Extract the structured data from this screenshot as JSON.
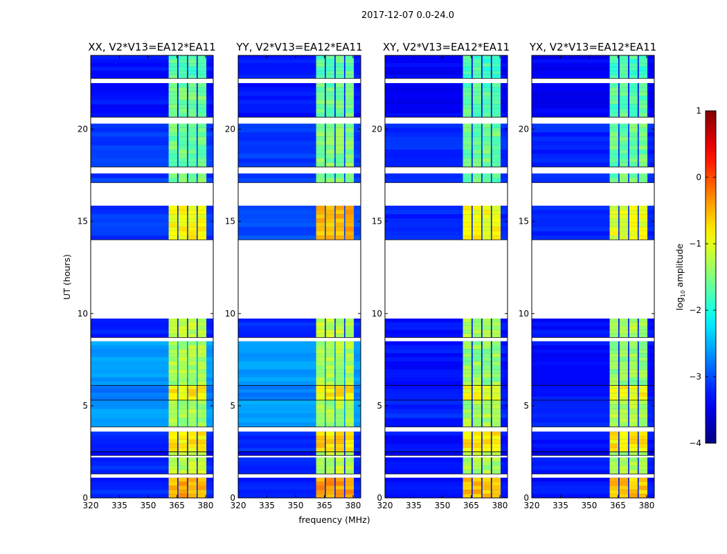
{
  "chart_data": {
    "type": "heatmap",
    "title": "2017-12-07 0.0-24.0",
    "xlabel": "frequency (MHz)",
    "ylabel": "UT (hours)",
    "xlim": [
      320,
      384
    ],
    "ylim": [
      0,
      24
    ],
    "xticks": [
      320,
      335,
      350,
      365,
      380
    ],
    "yticks": [
      0,
      5,
      10,
      15,
      20
    ],
    "panels": [
      {
        "title": "XX, V2*V13=EA12*EA11"
      },
      {
        "title": "YY, V2*V13=EA12*EA11"
      },
      {
        "title": "XY, V2*V13=EA12*EA11"
      },
      {
        "title": "YX, V2*V13=EA12*EA11"
      }
    ],
    "colorbar": {
      "label": "log10 amplitude",
      "label_main": "log",
      "label_sub": "10",
      "label_rest": " amplitude",
      "range": [
        -4,
        1
      ],
      "ticks": [
        1,
        0,
        -1,
        -2,
        -3,
        -4
      ],
      "colormap": "jet"
    },
    "bright_channels_mhz": [
      [
        360.7,
        365.2
      ],
      [
        365.8,
        370.3
      ],
      [
        370.9,
        375.3
      ],
      [
        375.9,
        380.4
      ]
    ],
    "segments": [
      {
        "t": [
          0.0,
          1.1
        ],
        "bg": [
          -3.2,
          -3.2,
          -3.3,
          -3.3
        ],
        "ch": [
          -0.5,
          -0.4,
          -0.6,
          -0.6
        ]
      },
      {
        "t": [
          1.1,
          1.3
        ],
        "flagged": true
      },
      {
        "t": [
          1.3,
          2.2
        ],
        "bg": [
          -3.2,
          -3.2,
          -3.3,
          -3.3
        ],
        "ch": [
          -1.2,
          -1.2,
          -1.3,
          -1.3
        ]
      },
      {
        "t": [
          2.2,
          2.3
        ],
        "flagged": true
      },
      {
        "t": [
          2.3,
          2.5
        ],
        "bg": [
          -3.4,
          -3.4,
          -3.5,
          -3.5
        ],
        "ch": [
          -1.2,
          -1.2,
          -1.3,
          -1.3
        ]
      },
      {
        "t": [
          2.5,
          3.6
        ],
        "bg": [
          -3.2,
          -3.2,
          -3.3,
          -3.3
        ],
        "ch": [
          -0.8,
          -0.7,
          -0.8,
          -0.8
        ]
      },
      {
        "t": [
          3.6,
          3.85
        ],
        "flagged": true
      },
      {
        "t": [
          3.85,
          5.3
        ],
        "bg": [
          -2.6,
          -2.6,
          -3.2,
          -3.2
        ],
        "ch": [
          -1.3,
          -1.3,
          -1.3,
          -1.3
        ]
      },
      {
        "t": [
          5.3,
          6.1
        ],
        "bg": [
          -2.8,
          -2.8,
          -3.3,
          -3.3
        ],
        "ch": [
          -0.8,
          -0.8,
          -0.9,
          -0.9
        ]
      },
      {
        "t": [
          6.1,
          8.5
        ],
        "bg": [
          -2.6,
          -2.6,
          -3.3,
          -3.3
        ],
        "ch": [
          -1.3,
          -1.3,
          -1.4,
          -1.4
        ]
      },
      {
        "t": [
          8.5,
          8.7
        ],
        "flagged": true
      },
      {
        "t": [
          8.7,
          9.73
        ],
        "bg": [
          -3.2,
          -3.2,
          -3.3,
          -3.3
        ],
        "ch": [
          -1.2,
          -1.2,
          -1.3,
          -1.3
        ]
      },
      {
        "t": [
          9.73,
          14.0
        ],
        "flagged": true
      },
      {
        "t": [
          14.0,
          15.85
        ],
        "bg": [
          -3.1,
          -3.0,
          -3.2,
          -3.2
        ],
        "ch": [
          -0.9,
          -0.5,
          -0.9,
          -1.0
        ]
      },
      {
        "t": [
          15.85,
          17.1
        ],
        "flagged": true
      },
      {
        "t": [
          17.1,
          17.6
        ],
        "bg": [
          -3.1,
          -3.1,
          -3.2,
          -3.2
        ],
        "ch": [
          -1.5,
          -1.5,
          -1.6,
          -1.6
        ]
      },
      {
        "t": [
          17.6,
          17.95
        ],
        "flagged": true
      },
      {
        "t": [
          17.95,
          20.3
        ],
        "bg": [
          -3.1,
          -3.1,
          -3.2,
          -3.2
        ],
        "ch": [
          -1.6,
          -1.5,
          -1.6,
          -1.6
        ]
      },
      {
        "t": [
          20.3,
          20.65
        ],
        "flagged": true
      },
      {
        "t": [
          20.65,
          22.5
        ],
        "bg": [
          -3.3,
          -3.3,
          -3.4,
          -3.4
        ],
        "ch": [
          -1.6,
          -1.6,
          -1.7,
          -1.7
        ]
      },
      {
        "t": [
          22.5,
          22.75
        ],
        "flagged": true
      },
      {
        "t": [
          22.75,
          24.0
        ],
        "bg": [
          -3.3,
          -3.3,
          -3.4,
          -3.4
        ],
        "ch": [
          -1.7,
          -1.7,
          -1.8,
          -1.8
        ]
      }
    ]
  }
}
